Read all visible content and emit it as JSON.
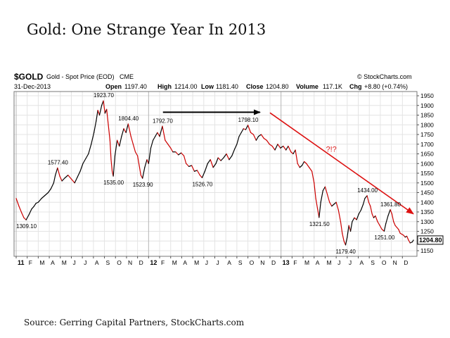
{
  "headline": "Gold: One Strange Year In 2013",
  "source": "Source: Gerring Capital Partners, StockCharts.com",
  "header": {
    "symbol": "$GOLD",
    "description": "Gold - Spot Price (EOD)",
    "exchange": "CME",
    "brand": "© StockCharts.com",
    "date": "31-Dec-2013",
    "open_label": "Open",
    "open_value": "1197.40",
    "high_label": "High",
    "high_value": "1214.00",
    "low_label": "Low",
    "low_value": "1181.40",
    "close_label": "Close",
    "close_value": "1204.80",
    "volume_label": "Volume",
    "volume_value": "117.1K",
    "chg_label": "Chg",
    "chg_value": "+8.80 (+0.74%)"
  },
  "annotation_text": "?!?",
  "colors": {
    "up": "#000000",
    "down": "#cc0000",
    "arrow_red": "#dd1111",
    "arrow_black": "#000000",
    "grid": "#e4e4e4"
  },
  "chart_data": {
    "type": "line",
    "title": "",
    "ylim": [
      1150,
      1950
    ],
    "yticks": [
      1150,
      1200,
      1250,
      1300,
      1350,
      1400,
      1450,
      1500,
      1550,
      1600,
      1650,
      1700,
      1750,
      1800,
      1850,
      1900,
      1950
    ],
    "x_tick_labels": [
      {
        "t": 0,
        "label": "11",
        "bold": true
      },
      {
        "t": 1,
        "label": "F"
      },
      {
        "t": 2,
        "label": "M"
      },
      {
        "t": 3,
        "label": "A"
      },
      {
        "t": 4,
        "label": "M"
      },
      {
        "t": 5,
        "label": "J"
      },
      {
        "t": 6,
        "label": "J"
      },
      {
        "t": 7,
        "label": "A"
      },
      {
        "t": 8,
        "label": "S"
      },
      {
        "t": 9,
        "label": "O"
      },
      {
        "t": 10,
        "label": "N"
      },
      {
        "t": 11,
        "label": "D"
      },
      {
        "t": 12,
        "label": "12",
        "bold": true
      },
      {
        "t": 13,
        "label": "F"
      },
      {
        "t": 14,
        "label": "M"
      },
      {
        "t": 15,
        "label": "A"
      },
      {
        "t": 16,
        "label": "M"
      },
      {
        "t": 17,
        "label": "J"
      },
      {
        "t": 18,
        "label": "J"
      },
      {
        "t": 19,
        "label": "A"
      },
      {
        "t": 20,
        "label": "S"
      },
      {
        "t": 21,
        "label": "O"
      },
      {
        "t": 22,
        "label": "N"
      },
      {
        "t": 23,
        "label": "D"
      },
      {
        "t": 24,
        "label": "13",
        "bold": true
      },
      {
        "t": 25,
        "label": "F"
      },
      {
        "t": 26,
        "label": "M"
      },
      {
        "t": 27,
        "label": "A"
      },
      {
        "t": 28,
        "label": "M"
      },
      {
        "t": 29,
        "label": "J"
      },
      {
        "t": 30,
        "label": "J"
      },
      {
        "t": 31,
        "label": "A"
      },
      {
        "t": 32,
        "label": "S"
      },
      {
        "t": 33,
        "label": "O"
      },
      {
        "t": 34,
        "label": "N"
      },
      {
        "t": 35,
        "label": "D"
      }
    ],
    "series": [
      {
        "points": [
          [
            0.0,
            1420
          ],
          [
            0.25,
            1380
          ],
          [
            0.5,
            1345
          ],
          [
            0.7,
            1320
          ],
          [
            0.9,
            1309.1
          ],
          [
            1.15,
            1335
          ],
          [
            1.4,
            1365
          ],
          [
            1.6,
            1378
          ],
          [
            1.8,
            1395
          ],
          [
            2.0,
            1400
          ],
          [
            2.3,
            1420
          ],
          [
            2.6,
            1435
          ],
          [
            2.9,
            1450
          ],
          [
            3.15,
            1470
          ],
          [
            3.4,
            1500
          ],
          [
            3.55,
            1540
          ],
          [
            3.75,
            1577.4
          ],
          [
            3.95,
            1535
          ],
          [
            4.15,
            1510
          ],
          [
            4.4,
            1525
          ],
          [
            4.7,
            1540
          ],
          [
            5.0,
            1520
          ],
          [
            5.3,
            1500
          ],
          [
            5.55,
            1530
          ],
          [
            5.8,
            1560
          ],
          [
            6.05,
            1600
          ],
          [
            6.3,
            1625
          ],
          [
            6.55,
            1650
          ],
          [
            6.8,
            1700
          ],
          [
            7.05,
            1760
          ],
          [
            7.25,
            1820
          ],
          [
            7.4,
            1875
          ],
          [
            7.55,
            1850
          ],
          [
            7.75,
            1900
          ],
          [
            7.9,
            1923.7
          ],
          [
            8.05,
            1860
          ],
          [
            8.2,
            1880
          ],
          [
            8.35,
            1800
          ],
          [
            8.5,
            1720
          ],
          [
            8.6,
            1620
          ],
          [
            8.7,
            1560
          ],
          [
            8.8,
            1535.0
          ],
          [
            8.95,
            1640
          ],
          [
            9.15,
            1720
          ],
          [
            9.35,
            1690
          ],
          [
            9.55,
            1740
          ],
          [
            9.75,
            1780
          ],
          [
            9.95,
            1760
          ],
          [
            10.15,
            1804.4
          ],
          [
            10.4,
            1740
          ],
          [
            10.6,
            1700
          ],
          [
            10.8,
            1660
          ],
          [
            11.0,
            1640
          ],
          [
            11.15,
            1590
          ],
          [
            11.3,
            1540
          ],
          [
            11.45,
            1523.9
          ],
          [
            11.65,
            1580
          ],
          [
            11.85,
            1620
          ],
          [
            12.0,
            1600
          ],
          [
            12.2,
            1680
          ],
          [
            12.4,
            1720
          ],
          [
            12.6,
            1740
          ],
          [
            12.8,
            1760
          ],
          [
            13.0,
            1740
          ],
          [
            13.25,
            1792.7
          ],
          [
            13.5,
            1720
          ],
          [
            13.75,
            1700
          ],
          [
            14.0,
            1680
          ],
          [
            14.2,
            1660
          ],
          [
            14.45,
            1660
          ],
          [
            14.7,
            1645
          ],
          [
            14.95,
            1655
          ],
          [
            15.2,
            1640
          ],
          [
            15.4,
            1600
          ],
          [
            15.65,
            1585
          ],
          [
            15.9,
            1590
          ],
          [
            16.15,
            1560
          ],
          [
            16.4,
            1565
          ],
          [
            16.65,
            1540
          ],
          [
            16.85,
            1526.7
          ],
          [
            17.1,
            1560
          ],
          [
            17.35,
            1600
          ],
          [
            17.6,
            1620
          ],
          [
            17.85,
            1580
          ],
          [
            18.1,
            1600
          ],
          [
            18.3,
            1630
          ],
          [
            18.55,
            1615
          ],
          [
            18.8,
            1630
          ],
          [
            19.05,
            1650
          ],
          [
            19.3,
            1620
          ],
          [
            19.55,
            1640
          ],
          [
            19.8,
            1675
          ],
          [
            20.0,
            1700
          ],
          [
            20.2,
            1740
          ],
          [
            20.4,
            1760
          ],
          [
            20.6,
            1780
          ],
          [
            20.8,
            1775
          ],
          [
            21.0,
            1798.1
          ],
          [
            21.25,
            1760
          ],
          [
            21.5,
            1750
          ],
          [
            21.75,
            1720
          ],
          [
            21.95,
            1740
          ],
          [
            22.2,
            1750
          ],
          [
            22.45,
            1730
          ],
          [
            22.7,
            1720
          ],
          [
            22.95,
            1700
          ],
          [
            23.2,
            1690
          ],
          [
            23.45,
            1670
          ],
          [
            23.7,
            1700
          ],
          [
            23.95,
            1680
          ],
          [
            24.2,
            1690
          ],
          [
            24.45,
            1670
          ],
          [
            24.65,
            1690
          ],
          [
            24.9,
            1660
          ],
          [
            25.1,
            1650
          ],
          [
            25.3,
            1670
          ],
          [
            25.5,
            1600
          ],
          [
            25.7,
            1580
          ],
          [
            25.9,
            1590
          ],
          [
            26.1,
            1610
          ],
          [
            26.3,
            1600
          ],
          [
            26.55,
            1580
          ],
          [
            26.8,
            1560
          ],
          [
            27.0,
            1500
          ],
          [
            27.15,
            1420
          ],
          [
            27.3,
            1370
          ],
          [
            27.45,
            1321.5
          ],
          [
            27.6,
            1400
          ],
          [
            27.8,
            1460
          ],
          [
            28.0,
            1480
          ],
          [
            28.2,
            1440
          ],
          [
            28.4,
            1400
          ],
          [
            28.6,
            1380
          ],
          [
            28.8,
            1390
          ],
          [
            29.0,
            1400
          ],
          [
            29.2,
            1360
          ],
          [
            29.4,
            1300
          ],
          [
            29.55,
            1240
          ],
          [
            29.7,
            1200
          ],
          [
            29.85,
            1179.4
          ],
          [
            30.0,
            1220
          ],
          [
            30.15,
            1280
          ],
          [
            30.3,
            1250
          ],
          [
            30.45,
            1300
          ],
          [
            30.65,
            1320
          ],
          [
            30.85,
            1310
          ],
          [
            31.05,
            1340
          ],
          [
            31.25,
            1360
          ],
          [
            31.45,
            1390
          ],
          [
            31.6,
            1420
          ],
          [
            31.8,
            1434.0
          ],
          [
            31.95,
            1400
          ],
          [
            32.1,
            1380
          ],
          [
            32.25,
            1340
          ],
          [
            32.4,
            1320
          ],
          [
            32.55,
            1330
          ],
          [
            32.75,
            1300
          ],
          [
            32.95,
            1280
          ],
          [
            33.15,
            1260
          ],
          [
            33.35,
            1251.0
          ],
          [
            33.5,
            1290
          ],
          [
            33.7,
            1330
          ],
          [
            33.9,
            1361.8
          ],
          [
            34.05,
            1340
          ],
          [
            34.2,
            1300
          ],
          [
            34.35,
            1280
          ],
          [
            34.5,
            1270
          ],
          [
            34.65,
            1260
          ],
          [
            34.8,
            1240
          ],
          [
            34.95,
            1235
          ],
          [
            35.1,
            1230
          ],
          [
            35.25,
            1220
          ],
          [
            35.4,
            1225
          ],
          [
            35.55,
            1205
          ],
          [
            35.7,
            1190
          ],
          [
            35.9,
            1195
          ],
          [
            36.0,
            1204.8
          ]
        ]
      }
    ],
    "labels": [
      {
        "t": 0.9,
        "v": 1309.1,
        "text": "1309.10",
        "pos": "below"
      },
      {
        "t": 3.75,
        "v": 1577.4,
        "text": "1577.40",
        "pos": "above"
      },
      {
        "t": 7.9,
        "v": 1923.7,
        "text": "1923.70",
        "pos": "above"
      },
      {
        "t": 8.8,
        "v": 1535.0,
        "text": "1535.00",
        "pos": "below"
      },
      {
        "t": 10.15,
        "v": 1804.4,
        "text": "1804.40",
        "pos": "above"
      },
      {
        "t": 11.45,
        "v": 1523.9,
        "text": "1523.90",
        "pos": "below"
      },
      {
        "t": 13.25,
        "v": 1792.7,
        "text": "1792.70",
        "pos": "above"
      },
      {
        "t": 16.85,
        "v": 1526.7,
        "text": "1526.70",
        "pos": "below"
      },
      {
        "t": 21.0,
        "v": 1798.1,
        "text": "1798.10",
        "pos": "above"
      },
      {
        "t": 27.45,
        "v": 1321.5,
        "text": "1321.50",
        "pos": "below"
      },
      {
        "t": 29.85,
        "v": 1179.4,
        "text": "1179.40",
        "pos": "below"
      },
      {
        "t": 31.8,
        "v": 1434.0,
        "text": "1434.00",
        "pos": "above"
      },
      {
        "t": 33.35,
        "v": 1251.0,
        "text": "1251.00",
        "pos": "below"
      },
      {
        "t": 33.9,
        "v": 1361.8,
        "text": "1361.80",
        "pos": "above"
      }
    ],
    "last_value": "1204.80",
    "overlays": [
      {
        "kind": "black-arrow",
        "from": [
          13.3,
          1865
        ],
        "to": [
          22.1,
          1865
        ]
      },
      {
        "kind": "red-arrow",
        "from": [
          23.0,
          1862
        ],
        "to": [
          36.0,
          1340
        ]
      }
    ]
  }
}
